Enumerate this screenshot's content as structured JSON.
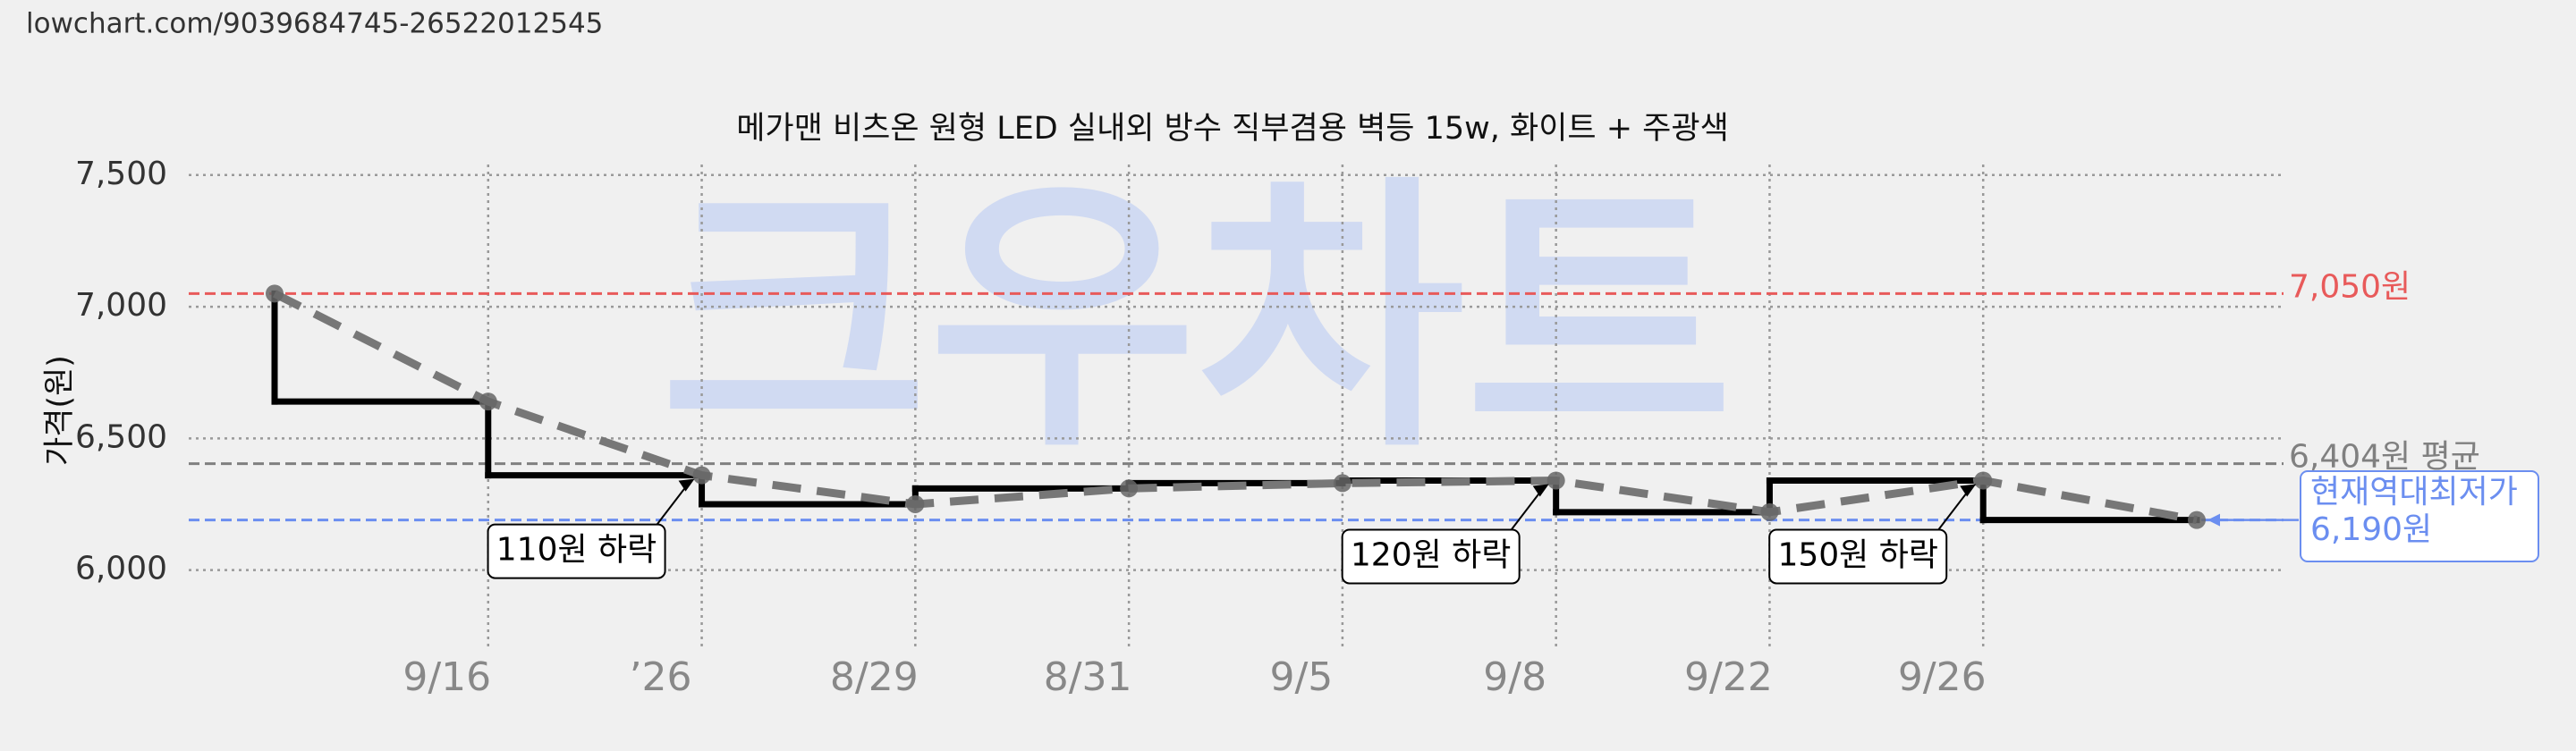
{
  "url": "lowchart.com/9039684745-26522012545",
  "chart_data": {
    "type": "step-line",
    "title": "메가맨 비츠온 원형 LED 실내외 방수 직부겸용 벽등 15w, 화이트 + 주광색",
    "watermark": "크우차트",
    "y_label": "가격(원)",
    "categories": [
      null,
      "9/16",
      "’26",
      "8/29",
      "8/31",
      "9/5",
      "9/8",
      "9/22",
      "9/26",
      null
    ],
    "values": [
      7050,
      6640,
      6360,
      6250,
      6310,
      6330,
      6340,
      6220,
      6340,
      6190
    ],
    "step_color": "#000000",
    "trend_color": "#777777",
    "ylim": [
      5700,
      7540
    ],
    "yticks": [
      {
        "value": 6000,
        "label": "6,000"
      },
      {
        "value": 6500,
        "label": "6,500"
      },
      {
        "value": 7000,
        "label": "7,000"
      },
      {
        "value": 7500,
        "label": "7,500"
      }
    ],
    "grid": true,
    "reference_lines": [
      {
        "value": 7050,
        "label": "7,050원",
        "color": "#e85a5a"
      },
      {
        "value": 6404,
        "label": "6,404원 평균",
        "color": "#808080"
      },
      {
        "value": 6190,
        "label": "현재역대최저가",
        "label2": "6,190원",
        "color": "#6b8ef0"
      }
    ],
    "annotations": [
      {
        "text": "110원 하락",
        "at": 2
      },
      {
        "text": "120원 하락",
        "at": 6
      },
      {
        "text": "150원 하락",
        "at": 8
      }
    ]
  }
}
